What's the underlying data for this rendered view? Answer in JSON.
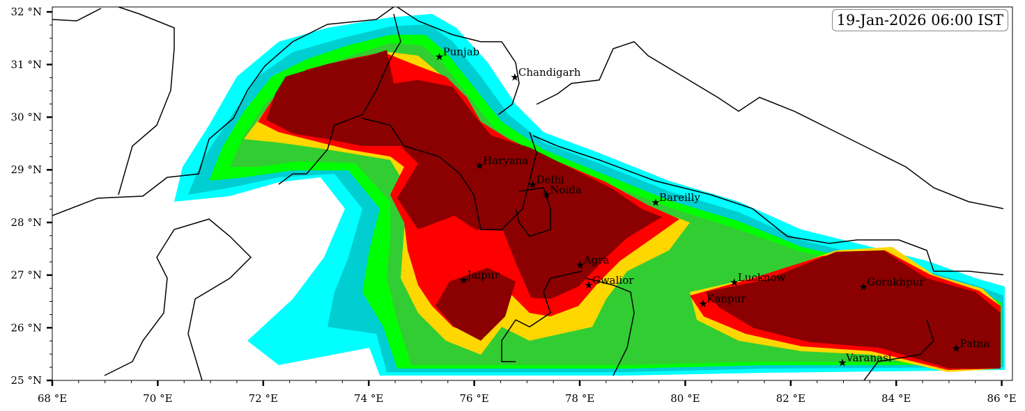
{
  "timestamp": "19-Jan-2026 06:00 IST",
  "map": {
    "lon_range": [
      68,
      86.2
    ],
    "lat_range": [
      25,
      32.1
    ],
    "x_ticks": [
      {
        "value": 68,
        "label": "68 °E"
      },
      {
        "value": 70,
        "label": "70 °E"
      },
      {
        "value": 72,
        "label": "72 °E"
      },
      {
        "value": 74,
        "label": "74 °E"
      },
      {
        "value": 76,
        "label": "76 °E"
      },
      {
        "value": 78,
        "label": "78 °E"
      },
      {
        "value": 80,
        "label": "80 °E"
      },
      {
        "value": 82,
        "label": "82 °E"
      },
      {
        "value": 84,
        "label": "84 °E"
      },
      {
        "value": 86,
        "label": "86 °E"
      }
    ],
    "y_ticks": [
      {
        "value": 25,
        "label": "25 °N"
      },
      {
        "value": 26,
        "label": "26 °N"
      },
      {
        "value": 27,
        "label": "27 °N"
      },
      {
        "value": 28,
        "label": "28 °N"
      },
      {
        "value": 29,
        "label": "29 °N"
      },
      {
        "value": 30,
        "label": "30 °N"
      },
      {
        "value": 31,
        "label": "31 °N"
      },
      {
        "value": 32,
        "label": "32 °N"
      }
    ],
    "fog_levels_colors": [
      "#00ffff",
      "#00ced1",
      "#00ff00",
      "#32cd32",
      "#ffd700",
      "#ff0000",
      "#8b0000"
    ],
    "cities": [
      {
        "name": "Punjab",
        "lon": 75.34,
        "lat": 31.15
      },
      {
        "name": "Chandigarh",
        "lon": 76.77,
        "lat": 30.76
      },
      {
        "name": "Haryana",
        "lon": 76.1,
        "lat": 29.08
      },
      {
        "name": "Delhi",
        "lon": 77.11,
        "lat": 28.72
      },
      {
        "name": "Noida",
        "lon": 77.37,
        "lat": 28.53
      },
      {
        "name": "Bareilly",
        "lon": 79.44,
        "lat": 28.38
      },
      {
        "name": "Agra",
        "lon": 78.01,
        "lat": 27.19
      },
      {
        "name": "Jaipur",
        "lon": 75.8,
        "lat": 26.91
      },
      {
        "name": "Gwalior",
        "lon": 78.17,
        "lat": 26.81
      },
      {
        "name": "Lucknow",
        "lon": 80.93,
        "lat": 26.86
      },
      {
        "name": "Kanpur",
        "lon": 80.34,
        "lat": 26.46
      },
      {
        "name": "Gorakhpur",
        "lon": 83.38,
        "lat": 26.78
      },
      {
        "name": "Varanasi",
        "lon": 82.98,
        "lat": 25.34
      },
      {
        "name": "Patna",
        "lon": 85.14,
        "lat": 25.61
      }
    ]
  }
}
